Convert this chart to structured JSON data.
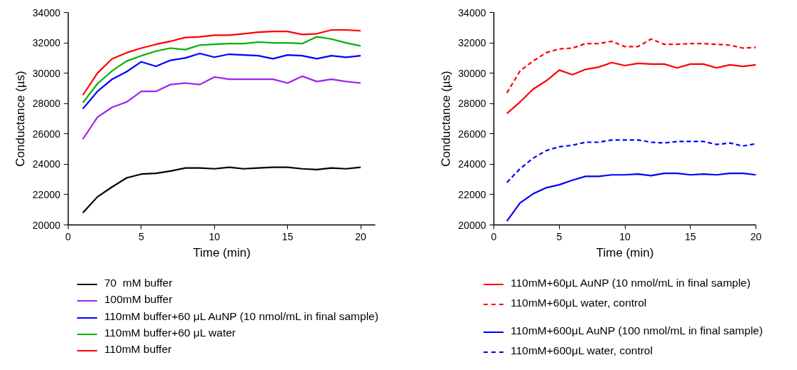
{
  "chart_data": [
    {
      "type": "line",
      "xlabel": "Time (min)",
      "ylabel": "Conductance (µs)",
      "x": [
        1,
        2,
        3,
        4,
        5,
        6,
        7,
        8,
        9,
        10,
        11,
        12,
        13,
        14,
        15,
        16,
        17,
        18,
        19,
        20
      ],
      "xlim": [
        0,
        21
      ],
      "xticks": [
        0,
        5,
        10,
        15,
        20
      ],
      "ylim": [
        20000,
        34000
      ],
      "yticks": [
        20000,
        22000,
        24000,
        26000,
        28000,
        30000,
        32000,
        34000
      ],
      "legend": "bottom",
      "series": [
        {
          "name": "70  mM buffer",
          "color": "#000000",
          "line_style": "solid",
          "values": [
            20800,
            21850,
            22500,
            23100,
            23350,
            23400,
            23550,
            23750,
            23750,
            23700,
            23800,
            23700,
            23750,
            23800,
            23800,
            23700,
            23650,
            23750,
            23700,
            23800
          ]
        },
        {
          "name": "100mM buffer",
          "color": "#a020f0",
          "line_style": "solid",
          "values": [
            25650,
            27100,
            27750,
            28100,
            28800,
            28800,
            29250,
            29350,
            29250,
            29750,
            29600,
            29600,
            29600,
            29600,
            29350,
            29800,
            29450,
            29600,
            29450,
            29350
          ]
        },
        {
          "name": "110mM buffer+60 μL AuNP (10 nmol/mL in final sample)",
          "color": "#0000ff",
          "line_style": "solid",
          "values": [
            27650,
            28800,
            29600,
            30100,
            30750,
            30450,
            30850,
            31000,
            31300,
            31050,
            31250,
            31200,
            31150,
            30950,
            31200,
            31150,
            30950,
            31150,
            31050,
            31150
          ]
        },
        {
          "name": "110mM buffer+60 μL water",
          "color": "#00b000",
          "line_style": "solid",
          "values": [
            28050,
            29300,
            30150,
            30800,
            31150,
            31450,
            31650,
            31550,
            31850,
            31900,
            31950,
            31950,
            32050,
            32000,
            32000,
            31950,
            32400,
            32250,
            32000,
            31800
          ]
        },
        {
          "name": "110mM buffer",
          "color": "#ff0000",
          "line_style": "solid",
          "values": [
            28550,
            30000,
            30950,
            31350,
            31650,
            31900,
            32100,
            32350,
            32400,
            32500,
            32500,
            32600,
            32700,
            32750,
            32750,
            32550,
            32600,
            32850,
            32850,
            32800
          ]
        }
      ]
    },
    {
      "type": "line",
      "xlabel": "Time (min)",
      "ylabel": "Conductance (µs)",
      "x": [
        1,
        2,
        3,
        4,
        5,
        6,
        7,
        8,
        9,
        10,
        11,
        12,
        13,
        14,
        15,
        16,
        17,
        18,
        19,
        20
      ],
      "xlim": [
        0,
        20
      ],
      "xticks": [
        0,
        5,
        10,
        15,
        20
      ],
      "ylim": [
        20000,
        34000
      ],
      "yticks": [
        20000,
        22000,
        24000,
        26000,
        28000,
        30000,
        32000,
        34000
      ],
      "legend": "bottom",
      "series": [
        {
          "name": "110mM+60μL AuNP (10 nmol/mL in final sample)",
          "color": "#ff0000",
          "line_style": "solid",
          "values": [
            27350,
            28100,
            28950,
            29500,
            30200,
            29900,
            30250,
            30400,
            30700,
            30500,
            30650,
            30600,
            30600,
            30350,
            30600,
            30600,
            30350,
            30550,
            30450,
            30550
          ]
        },
        {
          "name": "110mM+60μL water, control",
          "color": "#ff0000",
          "line_style": "dashed",
          "values": [
            28700,
            30150,
            30800,
            31350,
            31600,
            31650,
            31950,
            31950,
            32100,
            31750,
            31750,
            32250,
            31900,
            31900,
            31950,
            31950,
            31900,
            31850,
            31650,
            31700
          ]
        },
        {
          "name": "110mM+600μL AuNP (100 nmol/mL in final sample)",
          "color": "#0000ff",
          "line_style": "solid",
          "values": [
            20250,
            21450,
            22050,
            22450,
            22650,
            22950,
            23200,
            23200,
            23300,
            23300,
            23350,
            23250,
            23400,
            23400,
            23300,
            23350,
            23300,
            23400,
            23400,
            23300
          ]
        },
        {
          "name": "110mM+600μL water, control",
          "color": "#0000ff",
          "line_style": "dashed",
          "values": [
            22800,
            23700,
            24400,
            24900,
            25150,
            25250,
            25450,
            25450,
            25600,
            25600,
            25600,
            25450,
            25400,
            25500,
            25500,
            25500,
            25300,
            25400,
            25200,
            25350
          ]
        }
      ]
    }
  ]
}
